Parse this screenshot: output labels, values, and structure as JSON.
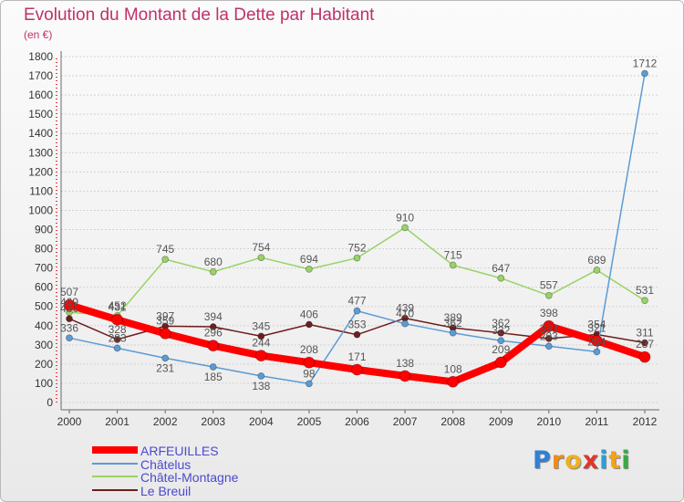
{
  "logo": {
    "text": "Proxiti",
    "letter_colors": [
      "#2f7fd6",
      "#f08c1a",
      "#f0b01e",
      "#e0362a",
      "#2a9fd8",
      "#f4a21c",
      "#3aa845"
    ]
  },
  "chart_data": {
    "type": "line",
    "title": "Evolution du Montant de la Dette par Habitant",
    "subtitle": "(en €)",
    "x": [
      2000,
      2001,
      2002,
      2003,
      2004,
      2005,
      2006,
      2007,
      2008,
      2009,
      2010,
      2011,
      2012
    ],
    "ylim": [
      0,
      1800
    ],
    "yticks": [
      0,
      100,
      200,
      300,
      400,
      500,
      600,
      700,
      800,
      900,
      1000,
      1100,
      1200,
      1300,
      1400,
      1500,
      1600,
      1700,
      1800
    ],
    "grid": true,
    "legend_position": "bottom-left",
    "series": [
      {
        "name": "ARFEUILLES",
        "color": "#ff0000",
        "values": [
          507,
          431,
          359,
          296,
          244,
          208,
          171,
          138,
          108,
          209,
          398,
          321,
          237
        ]
      },
      {
        "name": "Châtelus",
        "color": "#5b9bd5",
        "values": [
          336,
          283,
          231,
          185,
          138,
          98,
          477,
          410,
          362,
          322,
          293,
          264,
          1712
        ]
      },
      {
        "name": "Châtel-Montagne",
        "color": "#99d266",
        "values": [
          469,
          452,
          745,
          680,
          754,
          694,
          752,
          910,
          715,
          647,
          557,
          689,
          531
        ]
      },
      {
        "name": "Le Breuil",
        "color": "#6e1e1e",
        "values": [
          436,
          328,
          397,
          394,
          345,
          406,
          353,
          439,
          389,
          362,
          333,
          354,
          311
        ]
      }
    ]
  }
}
